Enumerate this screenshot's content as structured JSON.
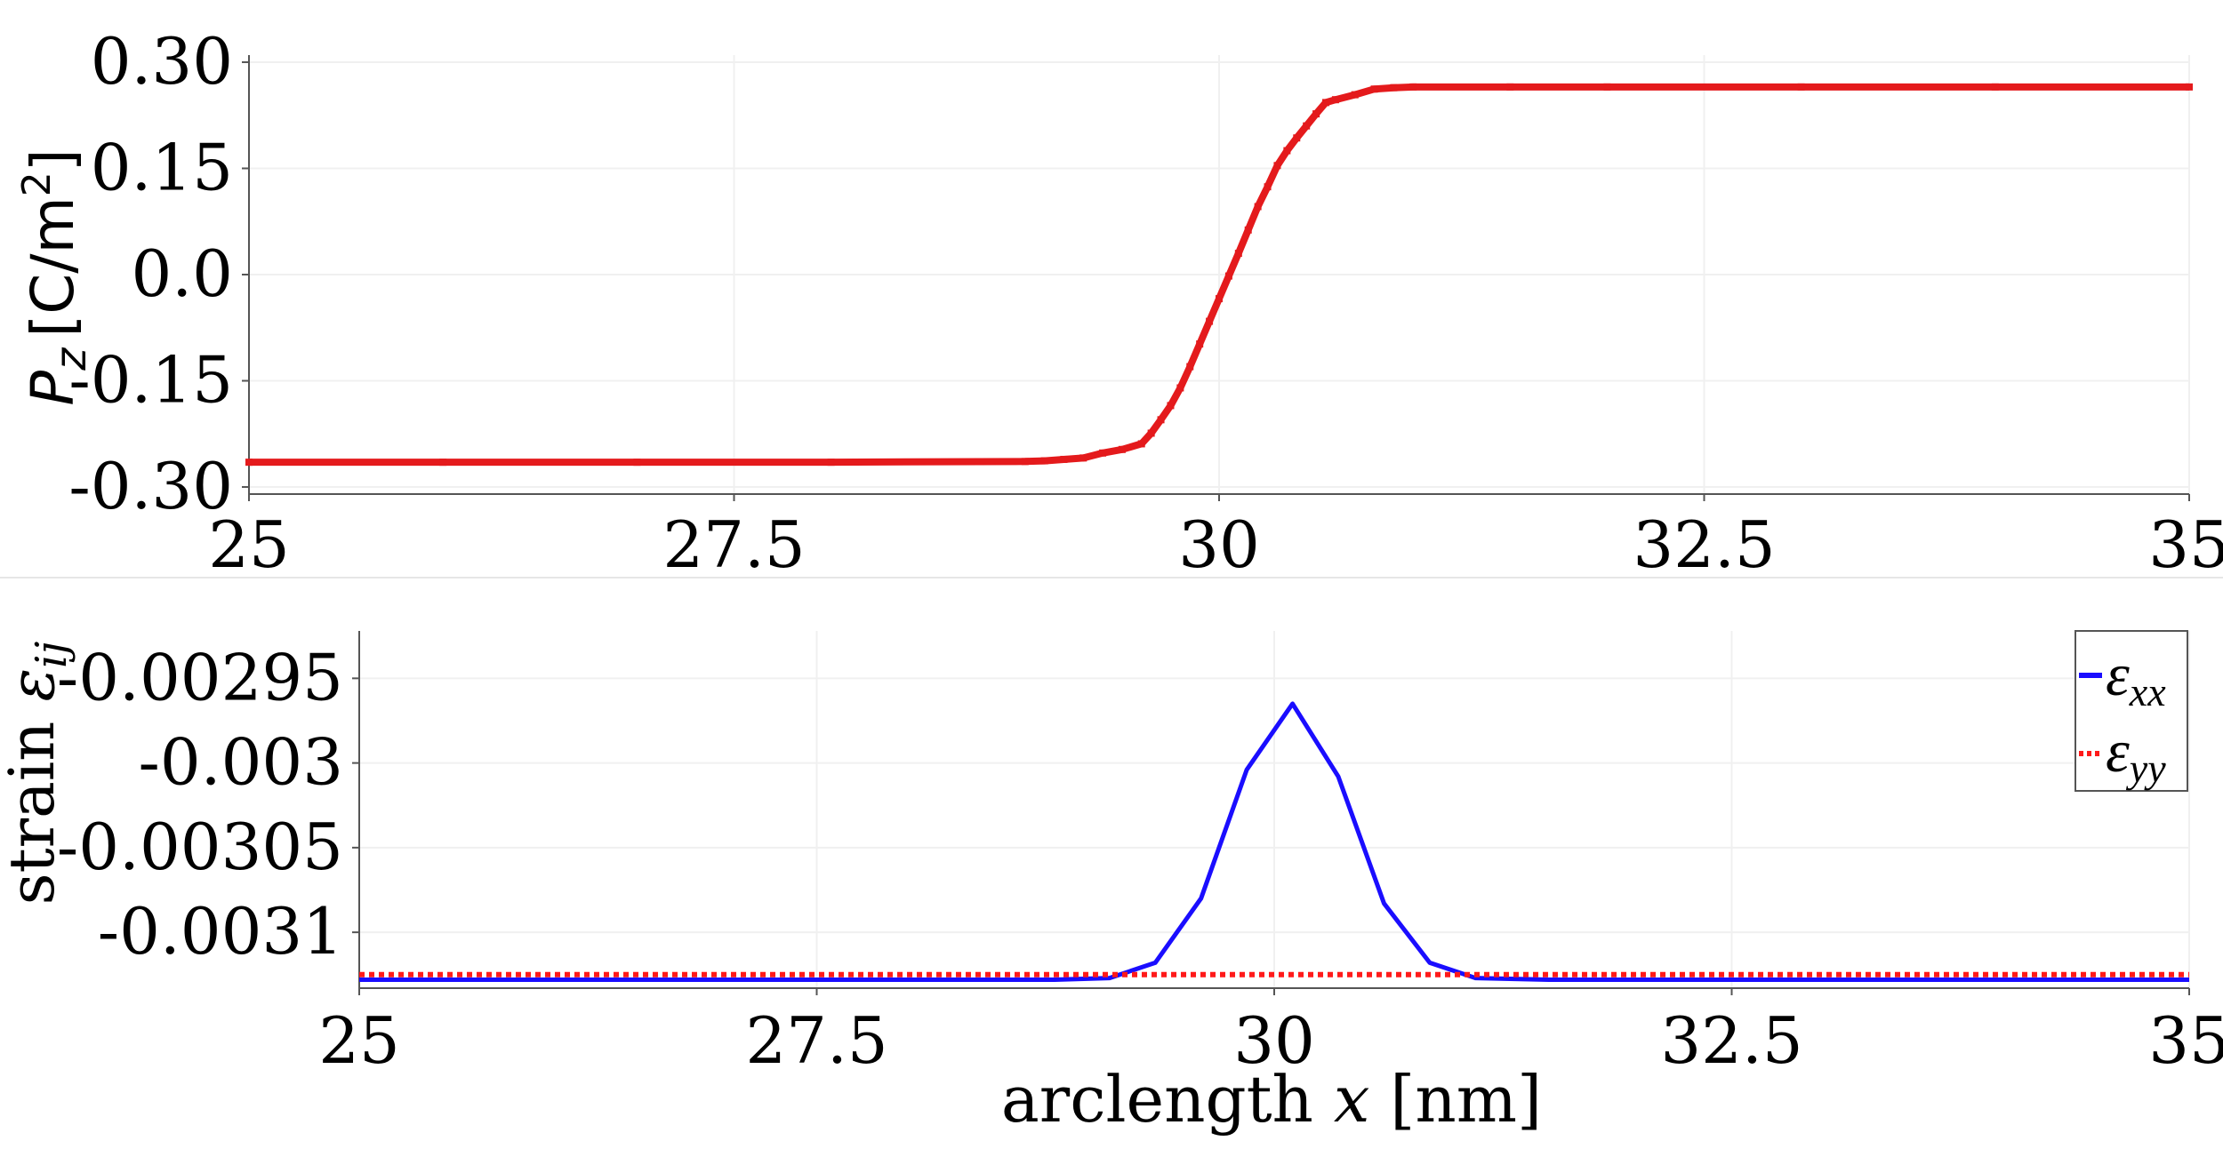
{
  "chart_data": [
    {
      "type": "line",
      "ylabel_parts": {
        "symbol": "P",
        "subscript": "z",
        "unit": "[C/m",
        "unit_power": "2",
        "unit_close": "]"
      },
      "xlabel": "",
      "xlim": [
        25,
        35
      ],
      "ylim": [
        -0.31,
        0.31
      ],
      "x_ticks": [
        25,
        27.5,
        30,
        32.5,
        35
      ],
      "x_tick_labels": [
        "25",
        "27.5",
        "30",
        "32.5",
        "35"
      ],
      "y_ticks": [
        0.3,
        0.15,
        0.0,
        -0.15,
        -0.3
      ],
      "y_tick_labels": [
        "0.30",
        "0.15",
        "0.0",
        "-0.15",
        "-0.30"
      ],
      "grid": true,
      "series": [
        {
          "color": "#e41a1c",
          "style": "solid-markers",
          "x": [
            25,
            26,
            27,
            28,
            29,
            29.1,
            29.2,
            29.3,
            29.4,
            29.5,
            29.6,
            29.65,
            29.7,
            29.75,
            29.8,
            29.85,
            29.9,
            29.95,
            30.0,
            30.05,
            30.1,
            30.15,
            30.2,
            30.25,
            30.3,
            30.35,
            30.4,
            30.45,
            30.5,
            30.55,
            30.6,
            30.7,
            30.8,
            30.9,
            31.0,
            31.5,
            32,
            33,
            34,
            35
          ],
          "y": [
            -0.265,
            -0.265,
            -0.265,
            -0.265,
            -0.264,
            -0.263,
            -0.261,
            -0.259,
            -0.252,
            -0.247,
            -0.239,
            -0.224,
            -0.205,
            -0.185,
            -0.16,
            -0.13,
            -0.098,
            -0.066,
            -0.034,
            -0.002,
            0.03,
            0.063,
            0.096,
            0.124,
            0.154,
            0.175,
            0.193,
            0.21,
            0.227,
            0.243,
            0.247,
            0.254,
            0.262,
            0.264,
            0.265,
            0.265,
            0.265,
            0.265,
            0.265,
            0.265
          ]
        }
      ]
    },
    {
      "type": "line",
      "ylabel_parts": {
        "prefix": "strain ",
        "symbol": "ε",
        "subscript": "ij"
      },
      "xlabel_parts": {
        "prefix": "arclength ",
        "symbol": "x",
        "suffix": " [nm]"
      },
      "xlim": [
        25,
        35
      ],
      "ylim": [
        -0.003133,
        -0.002922
      ],
      "x_ticks": [
        25,
        27.5,
        30,
        32.5,
        35
      ],
      "x_tick_labels": [
        "25",
        "27.5",
        "30",
        "32.5",
        "35"
      ],
      "y_ticks": [
        -0.00295,
        -0.003,
        -0.00305,
        -0.0031
      ],
      "y_tick_labels": [
        "-0.00295",
        "-0.003",
        "-0.00305",
        "-0.0031"
      ],
      "grid": true,
      "legend_position": "top-right",
      "series": [
        {
          "name_symbol": "ε",
          "name_subscript": "xx",
          "color": "#1a0dff",
          "style": "solid",
          "x": [
            25,
            26,
            27,
            28,
            28.8,
            29.1,
            29.35,
            29.6,
            29.85,
            30.1,
            30.35,
            30.6,
            30.85,
            31.1,
            31.5,
            32,
            33,
            34,
            35
          ],
          "y": [
            -0.003128,
            -0.003128,
            -0.003128,
            -0.003128,
            -0.003128,
            -0.003127,
            -0.003118,
            -0.00308,
            -0.003004,
            -0.002965,
            -0.003008,
            -0.003083,
            -0.003118,
            -0.003127,
            -0.003128,
            -0.003128,
            -0.003128,
            -0.003128,
            -0.003128
          ]
        },
        {
          "name_symbol": "ε",
          "name_subscript": "yy",
          "color": "#ff1a1a",
          "style": "dotted",
          "x": [
            25,
            35
          ],
          "y": [
            -0.003125,
            -0.003125
          ]
        }
      ]
    }
  ]
}
